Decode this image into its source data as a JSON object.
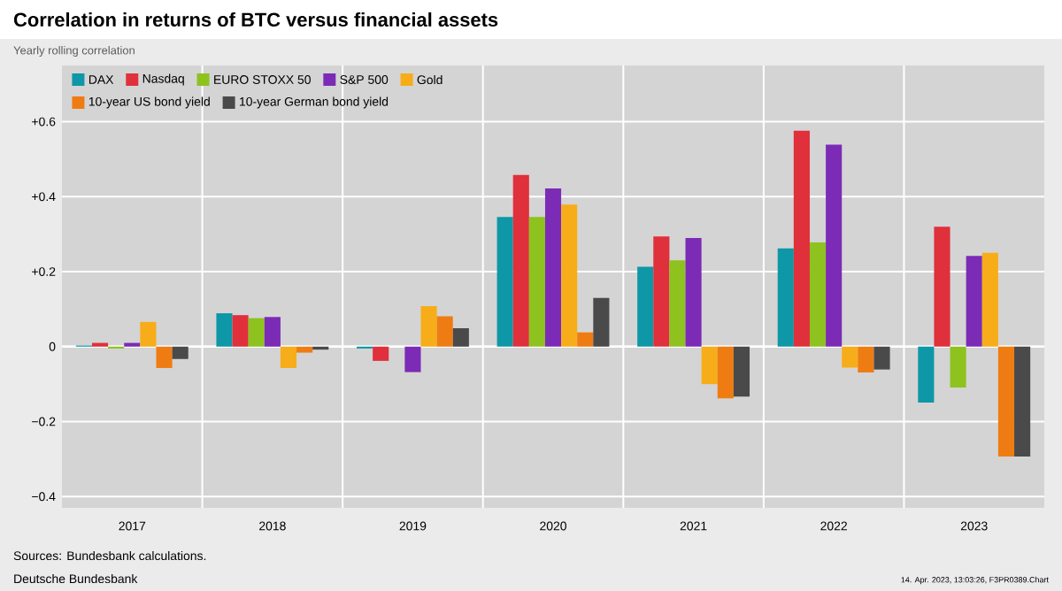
{
  "chart_data": {
    "type": "bar",
    "title": "Correlation in returns of BTC versus financial assets",
    "subtitle": "Yearly rolling correlation",
    "categories": [
      "2017",
      "2018",
      "2019",
      "2020",
      "2021",
      "2022",
      "2023"
    ],
    "series": [
      {
        "name": "DAX",
        "color": "#0e97a6",
        "values": [
          0.003,
          0.089,
          -0.005,
          0.346,
          0.213,
          0.262,
          -0.149
        ]
      },
      {
        "name": "Nasdaq",
        "color": "#e0303b",
        "values": [
          0.01,
          0.084,
          -0.038,
          0.458,
          0.294,
          0.576,
          0.32
        ]
      },
      {
        "name": "EURO STOXX 50",
        "color": "#8ec21f",
        "values": [
          -0.005,
          0.076,
          0.0,
          0.346,
          0.23,
          0.278,
          -0.109
        ]
      },
      {
        "name": "S&P 500",
        "color": "#7b2bb5",
        "values": [
          0.01,
          0.079,
          -0.068,
          0.422,
          0.29,
          0.539,
          0.242
        ]
      },
      {
        "name": "Gold",
        "color": "#f6ad19",
        "values": [
          0.066,
          -0.057,
          0.108,
          0.379,
          -0.1,
          -0.056,
          0.25
        ]
      },
      {
        "name": "10-year US bond yield",
        "color": "#ef7c12",
        "values": [
          -0.057,
          -0.016,
          0.081,
          0.038,
          -0.138,
          -0.069,
          -0.293
        ]
      },
      {
        "name": "10-year German bond yield",
        "color": "#4a4a4a",
        "values": [
          -0.033,
          -0.008,
          0.049,
          0.13,
          -0.133,
          -0.061,
          -0.293
        ]
      }
    ],
    "ylim": [
      -0.43,
      0.75
    ],
    "yticks": [
      {
        "value": -0.4,
        "label": "−0.4"
      },
      {
        "value": -0.2,
        "label": "−0.2"
      },
      0,
      {
        "value": 0.2,
        "label": "+0.2"
      },
      {
        "value": 0.4,
        "label": "+0.4"
      },
      {
        "value": 0.6,
        "label": "+0.6"
      }
    ],
    "grid": "y",
    "legend": "top left",
    "annotations": [
      "Sources: Bundesbank calculations.",
      "Deutsche Bundesbank",
      "14. Apr. 2023, 13:03:26, F3PR0389.Chart"
    ]
  }
}
